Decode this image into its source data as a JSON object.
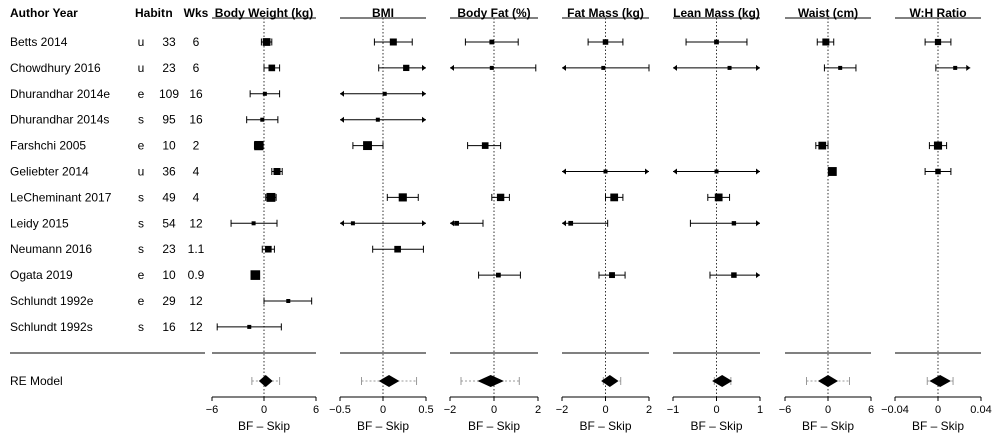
{
  "table": {
    "headers": {
      "author": "Author Year",
      "habit": "Habit",
      "n": "n",
      "wks": "Wks"
    },
    "studies": [
      {
        "author": "Betts 2014",
        "habit": "u",
        "n": "33",
        "wks": "6"
      },
      {
        "author": "Chowdhury 2016",
        "habit": "u",
        "n": "23",
        "wks": "6"
      },
      {
        "author": "Dhurandhar 2014e",
        "habit": "e",
        "n": "109",
        "wks": "16"
      },
      {
        "author": "Dhurandhar 2014s",
        "habit": "s",
        "n": "95",
        "wks": "16"
      },
      {
        "author": "Farshchi 2005",
        "habit": "e",
        "n": "10",
        "wks": "2"
      },
      {
        "author": "Geliebter 2014",
        "habit": "u",
        "n": "36",
        "wks": "4"
      },
      {
        "author": "LeCheminant 2017",
        "habit": "s",
        "n": "49",
        "wks": "4"
      },
      {
        "author": "Leidy 2015",
        "habit": "s",
        "n": "54",
        "wks": "12"
      },
      {
        "author": "Neumann 2016",
        "habit": "s",
        "n": "23",
        "wks": "1.1"
      },
      {
        "author": "Ogata 2019",
        "habit": "e",
        "n": "10",
        "wks": "0.9"
      },
      {
        "author": "Schlundt 1992e",
        "habit": "e",
        "n": "29",
        "wks": "12"
      },
      {
        "author": "Schlundt 1992s",
        "habit": "s",
        "n": "16",
        "wks": "12"
      }
    ],
    "summary_label": "RE Model"
  },
  "chart_data": {
    "type": "forest",
    "xlabel_all": "BF – Skip",
    "panels": [
      {
        "title": "Body Weight (kg)",
        "xlim": [
          -6,
          6
        ],
        "ticks": [
          -6,
          0,
          6
        ],
        "tick_labels": [
          "−6",
          "0",
          "6"
        ],
        "estimates": [
          {
            "est": 0.3,
            "lo": -0.3,
            "hi": 0.9,
            "weight": 0.7
          },
          {
            "est": 0.9,
            "lo": 0.0,
            "hi": 1.8,
            "weight": 0.55
          },
          {
            "est": 0.1,
            "lo": -1.6,
            "hi": 1.8,
            "weight": 0.2
          },
          {
            "est": -0.2,
            "lo": -2.0,
            "hi": 1.6,
            "weight": 0.2
          },
          {
            "est": -0.6,
            "lo": -1.1,
            "hi": -0.1,
            "weight": 0.9
          },
          {
            "est": 1.5,
            "lo": 0.9,
            "hi": 2.1,
            "weight": 0.6
          },
          {
            "est": 0.8,
            "lo": 0.2,
            "hi": 1.4,
            "weight": 0.85
          },
          {
            "est": -1.2,
            "lo": -3.8,
            "hi": 1.5,
            "weight": 0.2
          },
          {
            "est": 0.5,
            "lo": -0.2,
            "hi": 1.2,
            "weight": 0.55
          },
          {
            "est": -1.0,
            "lo": -1.4,
            "hi": -0.6,
            "weight": 0.95
          },
          {
            "est": 2.8,
            "lo": 0.0,
            "hi": 5.5,
            "weight": 0.2
          },
          {
            "est": -1.7,
            "lo": -5.4,
            "hi": 2.0,
            "weight": 0.2
          }
        ],
        "summary": {
          "est": 0.2,
          "lo": -0.6,
          "hi": 1.0,
          "pi_lo": -1.4,
          "pi_hi": 1.8
        }
      },
      {
        "title": "BMI",
        "xlim": [
          -0.5,
          0.5
        ],
        "ticks": [
          -0.5,
          0,
          0.5
        ],
        "tick_labels": [
          "−0.5",
          "0",
          "0.5"
        ],
        "estimates": [
          {
            "est": 0.12,
            "lo": -0.1,
            "hi": 0.34,
            "weight": 0.6
          },
          {
            "est": 0.27,
            "lo": -0.05,
            "hi": 0.5,
            "weight": 0.5,
            "arrow_hi": true
          },
          {
            "est": 0.02,
            "lo": -0.5,
            "hi": 0.5,
            "weight": 0.2,
            "arrow_lo": true,
            "arrow_hi": true
          },
          {
            "est": -0.06,
            "lo": -0.5,
            "hi": 0.5,
            "weight": 0.2,
            "arrow_lo": true,
            "arrow_hi": true
          },
          {
            "est": -0.18,
            "lo": -0.35,
            "hi": 0.0,
            "weight": 0.85
          },
          null,
          {
            "est": 0.23,
            "lo": 0.05,
            "hi": 0.41,
            "weight": 0.75
          },
          {
            "est": -0.35,
            "lo": -0.5,
            "hi": 0.5,
            "weight": 0.2,
            "arrow_lo": true,
            "arrow_hi": true
          },
          {
            "est": 0.17,
            "lo": -0.12,
            "hi": 0.47,
            "weight": 0.55
          },
          null,
          null,
          null
        ],
        "summary": {
          "est": 0.07,
          "lo": -0.05,
          "hi": 0.19,
          "pi_lo": -0.25,
          "pi_hi": 0.39
        }
      },
      {
        "title": "Body Fat (%)",
        "xlim": [
          -2,
          2
        ],
        "ticks": [
          -2,
          0,
          2
        ],
        "tick_labels": [
          "−2",
          "0",
          "2"
        ],
        "estimates": [
          {
            "est": -0.1,
            "lo": -1.3,
            "hi": 1.1,
            "weight": 0.3
          },
          {
            "est": -0.1,
            "lo": -2.0,
            "hi": 1.9,
            "weight": 0.2,
            "arrow_lo": true
          },
          null,
          null,
          {
            "est": -0.4,
            "lo": -1.2,
            "hi": 0.3,
            "weight": 0.55
          },
          null,
          {
            "est": 0.3,
            "lo": -0.1,
            "hi": 0.7,
            "weight": 0.65
          },
          {
            "est": -1.7,
            "lo": -2.0,
            "hi": -0.5,
            "weight": 0.3,
            "arrow_lo": true
          },
          null,
          {
            "est": 0.2,
            "lo": -0.7,
            "hi": 1.2,
            "weight": 0.3
          },
          null,
          null
        ],
        "summary": {
          "est": -0.15,
          "lo": -0.75,
          "hi": 0.45,
          "pi_lo": -1.5,
          "pi_hi": 1.15
        }
      },
      {
        "title": "Fat Mass (kg)",
        "xlim": [
          -2,
          2
        ],
        "ticks": [
          -2,
          0,
          2
        ],
        "tick_labels": [
          "−2",
          "0",
          "2"
        ],
        "estimates": [
          {
            "est": 0.0,
            "lo": -0.8,
            "hi": 0.8,
            "weight": 0.4
          },
          {
            "est": -0.1,
            "lo": -2.0,
            "hi": 2.0,
            "weight": 0.2,
            "arrow_lo": true
          },
          null,
          null,
          null,
          {
            "est": 0.0,
            "lo": -2.0,
            "hi": 2.0,
            "weight": 0.2,
            "arrow_lo": true,
            "arrow_hi": true
          },
          {
            "est": 0.4,
            "lo": 0.0,
            "hi": 0.8,
            "weight": 0.7
          },
          {
            "est": -1.6,
            "lo": -2.0,
            "hi": 0.1,
            "weight": 0.3,
            "arrow_lo": true
          },
          null,
          {
            "est": 0.3,
            "lo": -0.3,
            "hi": 0.9,
            "weight": 0.45
          },
          null,
          null
        ],
        "summary": {
          "est": 0.2,
          "lo": -0.2,
          "hi": 0.6,
          "pi_lo": -0.1,
          "pi_hi": 0.7
        }
      },
      {
        "title": "Lean Mass (kg)",
        "xlim": [
          -1,
          1
        ],
        "ticks": [
          -1,
          0,
          1
        ],
        "tick_labels": [
          "−1",
          "0",
          "1"
        ],
        "estimates": [
          {
            "est": 0.0,
            "lo": -0.7,
            "hi": 0.7,
            "weight": 0.3
          },
          {
            "est": 0.3,
            "lo": -1.0,
            "hi": 1.0,
            "weight": 0.2,
            "arrow_lo": true,
            "arrow_hi": true
          },
          null,
          null,
          null,
          {
            "est": 0.0,
            "lo": -1.0,
            "hi": 1.0,
            "weight": 0.2,
            "arrow_lo": true,
            "arrow_hi": true
          },
          {
            "est": 0.05,
            "lo": -0.2,
            "hi": 0.3,
            "weight": 0.7
          },
          {
            "est": 0.4,
            "lo": -0.6,
            "hi": 1.0,
            "weight": 0.25,
            "arrow_hi": true
          },
          null,
          {
            "est": 0.4,
            "lo": -0.15,
            "hi": 1.0,
            "weight": 0.4,
            "arrow_hi": true
          },
          null,
          null
        ],
        "summary": {
          "est": 0.13,
          "lo": -0.1,
          "hi": 0.36,
          "pi_lo": -0.05,
          "pi_hi": 0.33
        }
      },
      {
        "title": "Waist (cm)",
        "xlim": [
          -6,
          6
        ],
        "ticks": [
          -6,
          0,
          6
        ],
        "tick_labels": [
          "−6",
          "0",
          "6"
        ],
        "estimates": [
          {
            "est": -0.3,
            "lo": -1.5,
            "hi": 0.8,
            "weight": 0.6
          },
          {
            "est": 1.7,
            "lo": -0.5,
            "hi": 3.9,
            "weight": 0.2
          },
          null,
          null,
          {
            "est": -0.8,
            "lo": -1.7,
            "hi": 0.0,
            "weight": 0.7
          },
          {
            "est": 0.6,
            "lo": 0.6,
            "hi": 0.6,
            "weight": 0.85
          },
          null,
          null,
          null,
          null,
          null,
          null
        ],
        "summary": {
          "est": 0.0,
          "lo": -1.4,
          "hi": 1.4,
          "pi_lo": -3.0,
          "pi_hi": 3.0
        }
      },
      {
        "title": "W:H Ratio",
        "xlim": [
          -0.04,
          0.04
        ],
        "ticks": [
          -0.04,
          0,
          0.04
        ],
        "tick_labels": [
          "−0.04",
          "0",
          "0.04"
        ],
        "estimates": [
          {
            "est": 0.0,
            "lo": -0.012,
            "hi": 0.012,
            "weight": 0.5
          },
          {
            "est": 0.016,
            "lo": -0.002,
            "hi": 0.03,
            "weight": 0.2,
            "arrow_hi": true
          },
          null,
          null,
          {
            "est": 0.0,
            "lo": -0.008,
            "hi": 0.008,
            "weight": 0.75
          },
          {
            "est": 0.0,
            "lo": -0.012,
            "hi": 0.012,
            "weight": 0.4
          },
          null,
          null,
          null,
          null,
          null,
          null
        ],
        "summary": {
          "est": 0.002,
          "lo": -0.008,
          "hi": 0.012,
          "pi_lo": -0.01,
          "pi_hi": 0.014
        }
      }
    ]
  }
}
